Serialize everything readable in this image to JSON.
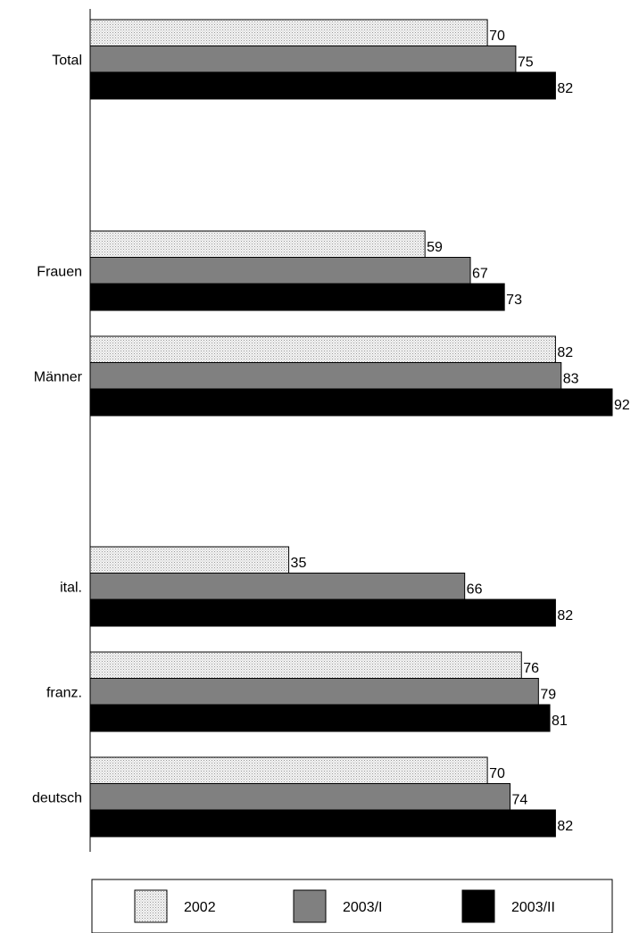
{
  "chart_data": {
    "type": "bar",
    "orientation": "horizontal",
    "title": "",
    "xlabel": "",
    "ylabel": "",
    "xlim": [
      0,
      92
    ],
    "grid": false,
    "legend_position": "bottom",
    "categories": [
      "Total",
      "Frauen",
      "Männer",
      "ital.",
      "franz.",
      "deutsch"
    ],
    "group_gaps_after": [
      "Total",
      "Männer"
    ],
    "series": [
      {
        "name": "2002",
        "values": [
          70,
          59,
          82,
          35,
          76,
          70
        ],
        "color": "#e6e6e6",
        "pattern": "dotted"
      },
      {
        "name": "2003/I",
        "values": [
          75,
          67,
          83,
          66,
          79,
          74
        ],
        "color": "#808080"
      },
      {
        "name": "2003/II",
        "values": [
          82,
          73,
          92,
          82,
          81,
          82
        ],
        "color": "#000000"
      }
    ]
  }
}
